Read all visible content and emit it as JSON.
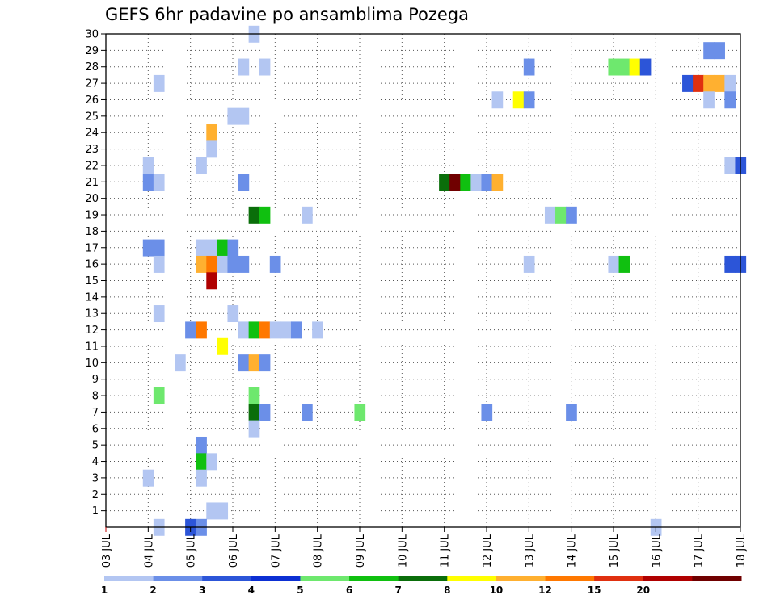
{
  "chart_data": {
    "type": "heatmap",
    "title": "GEFS 6hr padavine po ansamblima Pozega",
    "xlabel": "",
    "ylabel": "",
    "x_tick_labels": [
      "03 JUL",
      "04 JUL",
      "05 JUL",
      "06 JUL",
      "07 JUL",
      "08 JUL",
      "09 JUL",
      "10 JUL",
      "11 JUL",
      "12 JUL",
      "13 JUL",
      "14 JUL",
      "15 JUL",
      "16 JUL",
      "17 JUL",
      "18 JUL"
    ],
    "x_range": [
      0,
      60
    ],
    "x_step_hours": 6,
    "y_tick_labels": [
      "1",
      "2",
      "3",
      "4",
      "5",
      "6",
      "7",
      "8",
      "9",
      "10",
      "11",
      "12",
      "13",
      "14",
      "15",
      "16",
      "17",
      "18",
      "19",
      "20",
      "21",
      "22",
      "23",
      "24",
      "25",
      "26",
      "27",
      "28",
      "29",
      "30"
    ],
    "y_range": [
      0,
      30
    ],
    "grid": true,
    "legend": {
      "position": "bottom",
      "labels": [
        "1",
        "2",
        "3",
        "4",
        "5",
        "6",
        "7",
        "8",
        "10",
        "12",
        "15",
        "20"
      ],
      "colors": [
        "#b3c6f2",
        "#6b8fe8",
        "#2c55d8",
        "#0c2fd3",
        "#6ee86e",
        "#10c010",
        "#0a6e0a",
        "#ffff00",
        "#ffb030",
        "#ff7800",
        "#e03010",
        "#b00000",
        "#700000"
      ]
    },
    "cells": [
      {
        "x": 14,
        "m": 30,
        "c": 0
      },
      {
        "x": 57,
        "m": 29,
        "c": 1
      },
      {
        "x": 58,
        "m": 29,
        "c": 1
      },
      {
        "x": 13,
        "m": 28,
        "c": 0
      },
      {
        "x": 15,
        "m": 28,
        "c": 0
      },
      {
        "x": 40,
        "m": 28,
        "c": 1
      },
      {
        "x": 48,
        "m": 28,
        "c": 4
      },
      {
        "x": 49,
        "m": 28,
        "c": 4
      },
      {
        "x": 50,
        "m": 28,
        "c": 7
      },
      {
        "x": 51,
        "m": 28,
        "c": 2
      },
      {
        "x": 5,
        "m": 27,
        "c": 0
      },
      {
        "x": 55,
        "m": 27,
        "c": 2
      },
      {
        "x": 56,
        "m": 27,
        "c": 10
      },
      {
        "x": 57,
        "m": 27,
        "c": 8
      },
      {
        "x": 58,
        "m": 27,
        "c": 8
      },
      {
        "x": 59,
        "m": 27,
        "c": 0
      },
      {
        "x": 37,
        "m": 26,
        "c": 0
      },
      {
        "x": 39,
        "m": 26,
        "c": 7
      },
      {
        "x": 40,
        "m": 26,
        "c": 1
      },
      {
        "x": 57,
        "m": 26,
        "c": 0
      },
      {
        "x": 59,
        "m": 26,
        "c": 1
      },
      {
        "x": 12,
        "m": 25,
        "c": 0
      },
      {
        "x": 13,
        "m": 25,
        "c": 0
      },
      {
        "x": 10,
        "m": 24,
        "c": 8
      },
      {
        "x": 10,
        "m": 23,
        "c": 0
      },
      {
        "x": 4,
        "m": 22,
        "c": 0
      },
      {
        "x": 9,
        "m": 22,
        "c": 0
      },
      {
        "x": 59,
        "m": 22,
        "c": 0
      },
      {
        "x": 60,
        "m": 22,
        "c": 2
      },
      {
        "x": 4,
        "m": 21,
        "c": 1
      },
      {
        "x": 5,
        "m": 21,
        "c": 0
      },
      {
        "x": 13,
        "m": 21,
        "c": 1
      },
      {
        "x": 32,
        "m": 21,
        "c": 6
      },
      {
        "x": 33,
        "m": 21,
        "c": 12
      },
      {
        "x": 34,
        "m": 21,
        "c": 5
      },
      {
        "x": 35,
        "m": 21,
        "c": 0
      },
      {
        "x": 36,
        "m": 21,
        "c": 1
      },
      {
        "x": 37,
        "m": 21,
        "c": 8
      },
      {
        "x": 14,
        "m": 19,
        "c": 6
      },
      {
        "x": 15,
        "m": 19,
        "c": 5
      },
      {
        "x": 19,
        "m": 19,
        "c": 0
      },
      {
        "x": 42,
        "m": 19,
        "c": 0
      },
      {
        "x": 43,
        "m": 19,
        "c": 4
      },
      {
        "x": 44,
        "m": 19,
        "c": 1
      },
      {
        "x": 4,
        "m": 17,
        "c": 1
      },
      {
        "x": 5,
        "m": 17,
        "c": 1
      },
      {
        "x": 9,
        "m": 17,
        "c": 0
      },
      {
        "x": 10,
        "m": 17,
        "c": 0
      },
      {
        "x": 11,
        "m": 17,
        "c": 5
      },
      {
        "x": 12,
        "m": 17,
        "c": 1
      },
      {
        "x": 5,
        "m": 16,
        "c": 0
      },
      {
        "x": 9,
        "m": 16,
        "c": 8
      },
      {
        "x": 10,
        "m": 16,
        "c": 9
      },
      {
        "x": 11,
        "m": 16,
        "c": 0
      },
      {
        "x": 12,
        "m": 16,
        "c": 1
      },
      {
        "x": 13,
        "m": 16,
        "c": 1
      },
      {
        "x": 16,
        "m": 16,
        "c": 1
      },
      {
        "x": 40,
        "m": 16,
        "c": 0
      },
      {
        "x": 48,
        "m": 16,
        "c": 0
      },
      {
        "x": 49,
        "m": 16,
        "c": 5
      },
      {
        "x": 59,
        "m": 16,
        "c": 2
      },
      {
        "x": 60,
        "m": 16,
        "c": 2
      },
      {
        "x": 10,
        "m": 15,
        "c": 11
      },
      {
        "x": 5,
        "m": 13,
        "c": 0
      },
      {
        "x": 12,
        "m": 13,
        "c": 0
      },
      {
        "x": 8,
        "m": 12,
        "c": 1
      },
      {
        "x": 9,
        "m": 12,
        "c": 9
      },
      {
        "x": 13,
        "m": 12,
        "c": 0
      },
      {
        "x": 14,
        "m": 12,
        "c": 5
      },
      {
        "x": 15,
        "m": 12,
        "c": 9
      },
      {
        "x": 16,
        "m": 12,
        "c": 0
      },
      {
        "x": 17,
        "m": 12,
        "c": 0
      },
      {
        "x": 18,
        "m": 12,
        "c": 1
      },
      {
        "x": 20,
        "m": 12,
        "c": 0
      },
      {
        "x": 11,
        "m": 11,
        "c": 7
      },
      {
        "x": 7,
        "m": 10,
        "c": 0
      },
      {
        "x": 13,
        "m": 10,
        "c": 1
      },
      {
        "x": 14,
        "m": 10,
        "c": 8
      },
      {
        "x": 15,
        "m": 10,
        "c": 1
      },
      {
        "x": 5,
        "m": 8,
        "c": 4
      },
      {
        "x": 14,
        "m": 8,
        "c": 4
      },
      {
        "x": 14,
        "m": 7,
        "c": 6
      },
      {
        "x": 15,
        "m": 7,
        "c": 1
      },
      {
        "x": 19,
        "m": 7,
        "c": 1
      },
      {
        "x": 24,
        "m": 7,
        "c": 4
      },
      {
        "x": 36,
        "m": 7,
        "c": 1
      },
      {
        "x": 44,
        "m": 7,
        "c": 1
      },
      {
        "x": 14,
        "m": 6,
        "c": 0
      },
      {
        "x": 9,
        "m": 5,
        "c": 1
      },
      {
        "x": 9,
        "m": 4,
        "c": 5
      },
      {
        "x": 10,
        "m": 4,
        "c": 0
      },
      {
        "x": 4,
        "m": 3,
        "c": 0
      },
      {
        "x": 9,
        "m": 3,
        "c": 0
      },
      {
        "x": 10,
        "m": 1,
        "c": 0
      },
      {
        "x": 11,
        "m": 1,
        "c": 0
      },
      {
        "x": 5,
        "m": 0,
        "c": 0
      },
      {
        "x": 8,
        "m": 0,
        "c": 2
      },
      {
        "x": 9,
        "m": 0,
        "c": 1
      },
      {
        "x": 52,
        "m": 0,
        "c": 0
      }
    ]
  }
}
